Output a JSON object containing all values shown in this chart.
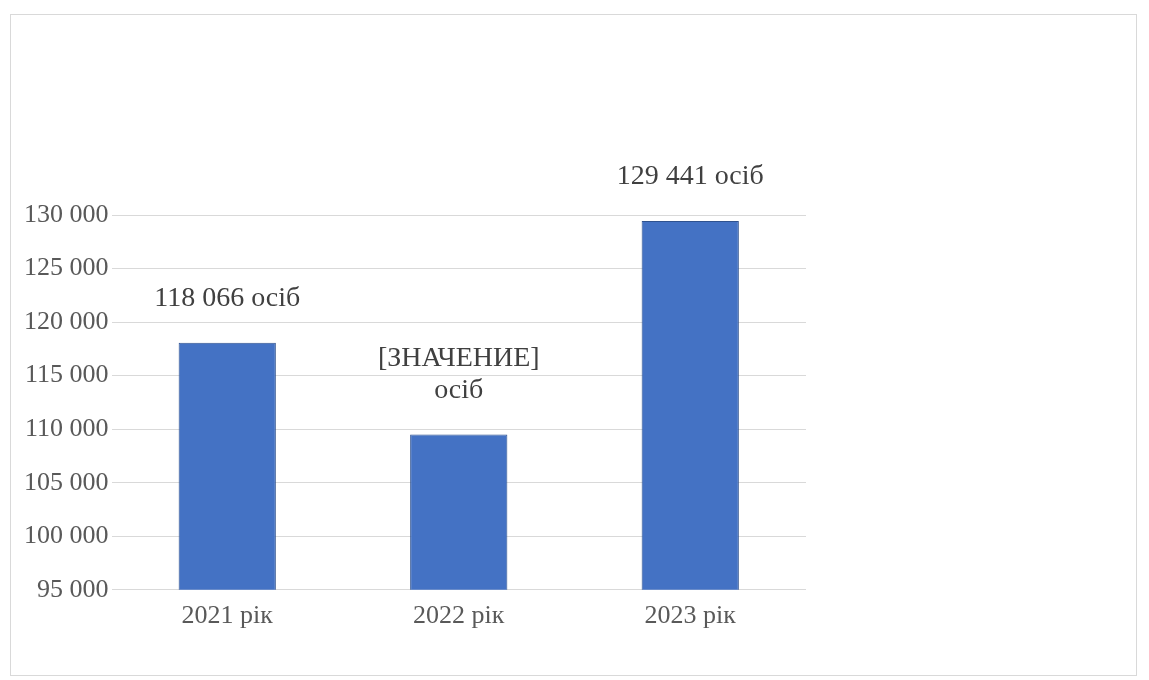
{
  "chart_data": {
    "type": "bar",
    "categories": [
      "2021 рік",
      "2022 рік",
      "2023 рік"
    ],
    "values": [
      118066,
      109500,
      129441
    ],
    "color": "#4472c4",
    "value_labels": [
      "118 066 осіб",
      "[ЗНАЧЕНИЕ] осіб",
      "129 441 осіб"
    ],
    "ylim": [
      95000,
      130000
    ],
    "yticks": [
      {
        "value": 95000,
        "label": "95 000"
      },
      {
        "value": 100000,
        "label": "100 000"
      },
      {
        "value": 105000,
        "label": "105 000"
      },
      {
        "value": 110000,
        "label": "110 000"
      },
      {
        "value": 115000,
        "label": "115 000"
      },
      {
        "value": 120000,
        "label": "120 000"
      },
      {
        "value": 125000,
        "label": "125 000"
      },
      {
        "value": 130000,
        "label": "130 000"
      }
    ],
    "grid": "y",
    "legend": false
  }
}
